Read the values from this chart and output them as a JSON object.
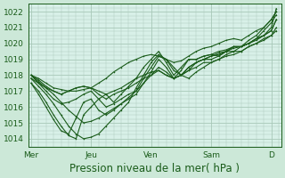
{
  "bg_color": "#cce8d8",
  "plot_bg_color": "#d8f0e8",
  "grid_color": "#a8c8b8",
  "line_color": "#1a5c1a",
  "xlabel": "Pression niveau de la mer( hPa )",
  "xlabel_fontsize": 8.5,
  "ylim": [
    1013.5,
    1022.5
  ],
  "yticks": [
    1014,
    1015,
    1016,
    1017,
    1018,
    1019,
    1020,
    1021,
    1022
  ],
  "xtick_labels": [
    "Mer",
    "Jeu",
    "Ven",
    "Sam",
    "D"
  ],
  "xtick_positions": [
    0,
    48,
    96,
    144,
    192
  ],
  "xlim": [
    -2,
    200
  ],
  "lines": [
    [
      0,
      1018.0,
      6,
      1017.8,
      12,
      1017.5,
      18,
      1017.2,
      24,
      1017.1,
      30,
      1017.0,
      36,
      1017.0,
      42,
      1017.1,
      48,
      1017.2,
      54,
      1017.5,
      60,
      1017.8,
      66,
      1018.2,
      72,
      1018.5,
      78,
      1018.8,
      84,
      1019.0,
      90,
      1019.2,
      96,
      1019.3,
      102,
      1019.2,
      108,
      1019.0,
      114,
      1018.8,
      120,
      1018.9,
      126,
      1019.2,
      132,
      1019.5,
      138,
      1019.7,
      144,
      1019.8,
      150,
      1020.0,
      156,
      1020.2,
      162,
      1020.3,
      168,
      1020.2,
      174,
      1020.5,
      180,
      1020.8,
      186,
      1021.0,
      192,
      1021.5,
      196,
      1022.0
    ],
    [
      0,
      1018.0,
      6,
      1017.6,
      12,
      1017.2,
      18,
      1016.8,
      24,
      1016.3,
      30,
      1015.8,
      36,
      1015.4,
      42,
      1015.0,
      48,
      1015.1,
      54,
      1015.3,
      60,
      1015.6,
      66,
      1015.9,
      72,
      1016.2,
      78,
      1016.6,
      84,
      1017.0,
      90,
      1017.8,
      96,
      1018.5,
      102,
      1019.2,
      108,
      1019.0,
      114,
      1018.5,
      120,
      1018.0,
      126,
      1017.8,
      132,
      1018.2,
      138,
      1018.5,
      144,
      1018.8,
      150,
      1019.0,
      156,
      1019.3,
      162,
      1019.5,
      168,
      1019.8,
      174,
      1020.0,
      180,
      1020.3,
      186,
      1020.5,
      192,
      1021.0,
      196,
      1022.2
    ],
    [
      0,
      1017.8,
      6,
      1017.3,
      12,
      1016.8,
      18,
      1016.2,
      24,
      1015.5,
      30,
      1014.8,
      36,
      1014.3,
      42,
      1014.0,
      48,
      1014.1,
      54,
      1014.3,
      60,
      1014.8,
      66,
      1015.3,
      72,
      1015.8,
      78,
      1016.3,
      84,
      1017.2,
      90,
      1018.0,
      96,
      1018.8,
      102,
      1019.3,
      108,
      1019.0,
      114,
      1018.3,
      120,
      1018.0,
      126,
      1018.5,
      132,
      1018.8,
      138,
      1019.0,
      144,
      1019.2,
      150,
      1019.4,
      156,
      1019.5,
      162,
      1019.7,
      168,
      1019.8,
      174,
      1020.0,
      180,
      1020.3,
      186,
      1020.8,
      192,
      1021.3,
      196,
      1021.8
    ],
    [
      0,
      1017.5,
      6,
      1017.0,
      12,
      1016.3,
      18,
      1015.5,
      24,
      1014.8,
      30,
      1014.2,
      36,
      1014.0,
      42,
      1015.5,
      48,
      1016.0,
      54,
      1016.5,
      60,
      1016.8,
      66,
      1016.3,
      72,
      1016.8,
      78,
      1017.3,
      84,
      1017.8,
      90,
      1018.5,
      96,
      1019.0,
      102,
      1019.5,
      108,
      1018.8,
      114,
      1018.0,
      120,
      1018.5,
      126,
      1019.0,
      132,
      1019.0,
      138,
      1019.2,
      144,
      1019.3,
      150,
      1019.5,
      156,
      1019.6,
      162,
      1019.8,
      168,
      1019.8,
      174,
      1020.0,
      180,
      1020.2,
      186,
      1020.5,
      192,
      1020.8,
      196,
      1021.5
    ],
    [
      0,
      1017.5,
      6,
      1016.8,
      12,
      1016.0,
      18,
      1015.2,
      24,
      1014.5,
      30,
      1014.3,
      36,
      1015.3,
      42,
      1016.3,
      48,
      1016.5,
      54,
      1015.8,
      60,
      1015.5,
      66,
      1015.8,
      72,
      1016.2,
      78,
      1016.5,
      84,
      1016.8,
      90,
      1017.5,
      96,
      1018.2,
      102,
      1019.0,
      108,
      1018.5,
      114,
      1017.8,
      120,
      1018.3,
      126,
      1019.0,
      132,
      1019.0,
      138,
      1019.2,
      144,
      1019.3,
      150,
      1019.2,
      156,
      1019.5,
      162,
      1019.8,
      168,
      1019.8,
      174,
      1020.2,
      180,
      1020.5,
      186,
      1021.0,
      192,
      1021.5,
      196,
      1022.0
    ],
    [
      0,
      1018.0,
      6,
      1017.5,
      12,
      1017.0,
      18,
      1016.5,
      24,
      1016.2,
      30,
      1016.3,
      36,
      1016.5,
      42,
      1016.8,
      48,
      1017.0,
      54,
      1016.5,
      60,
      1016.0,
      66,
      1016.2,
      72,
      1016.5,
      78,
      1016.8,
      84,
      1017.0,
      90,
      1017.5,
      96,
      1018.0,
      102,
      1018.5,
      108,
      1018.2,
      114,
      1017.8,
      120,
      1018.0,
      126,
      1018.3,
      132,
      1018.8,
      138,
      1019.0,
      144,
      1019.2,
      150,
      1019.3,
      156,
      1019.5,
      162,
      1019.8,
      168,
      1019.8,
      174,
      1020.0,
      180,
      1020.3,
      186,
      1020.5,
      192,
      1020.8,
      196,
      1021.5
    ],
    [
      0,
      1018.0,
      6,
      1017.7,
      12,
      1017.3,
      18,
      1017.0,
      24,
      1016.8,
      30,
      1017.0,
      36,
      1017.2,
      42,
      1017.3,
      48,
      1017.2,
      54,
      1016.8,
      60,
      1016.5,
      66,
      1016.8,
      72,
      1017.0,
      78,
      1017.2,
      84,
      1017.5,
      90,
      1017.8,
      96,
      1018.0,
      102,
      1018.3,
      108,
      1018.0,
      114,
      1017.8,
      120,
      1018.0,
      126,
      1018.5,
      132,
      1018.8,
      138,
      1019.0,
      144,
      1019.0,
      150,
      1019.2,
      156,
      1019.5,
      162,
      1019.5,
      168,
      1019.5,
      174,
      1019.8,
      180,
      1020.0,
      186,
      1020.3,
      192,
      1020.5,
      196,
      1021.0
    ],
    [
      0,
      1017.8,
      6,
      1017.5,
      12,
      1017.2,
      18,
      1017.0,
      24,
      1016.8,
      30,
      1017.0,
      36,
      1017.2,
      42,
      1017.3,
      48,
      1017.2,
      54,
      1017.0,
      60,
      1016.8,
      66,
      1017.0,
      72,
      1017.2,
      78,
      1017.5,
      84,
      1017.8,
      90,
      1018.0,
      96,
      1018.2,
      102,
      1018.3,
      108,
      1018.0,
      114,
      1017.8,
      120,
      1018.0,
      126,
      1018.3,
      132,
      1018.5,
      138,
      1018.8,
      144,
      1018.8,
      150,
      1019.0,
      156,
      1019.2,
      162,
      1019.3,
      168,
      1019.5,
      174,
      1019.8,
      180,
      1020.0,
      186,
      1020.2,
      192,
      1020.5,
      196,
      1020.8
    ]
  ]
}
